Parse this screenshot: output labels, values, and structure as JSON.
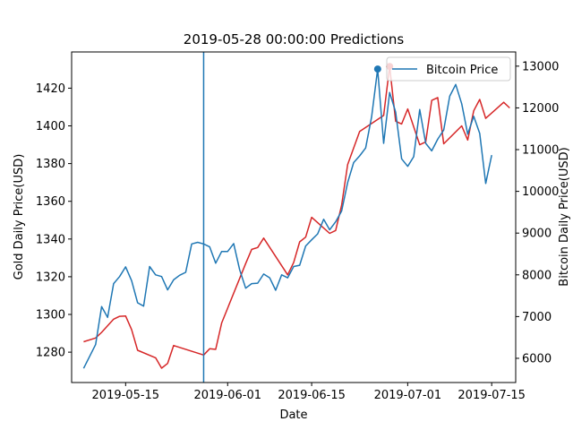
{
  "chart_data": {
    "type": "line",
    "title": "2019-05-28 00:00:00 Predictions",
    "xlabel": "Date",
    "ylabel_left": "Gold Daily Price(USD)",
    "ylabel_right": "Bitcoin Daily Price(USD)",
    "x_ticks": [
      "2019-05-15",
      "2019-06-01",
      "2019-06-15",
      "2019-07-01",
      "2019-07-15"
    ],
    "x_tick_dates": [
      "2019-05-15",
      "2019-06-01",
      "2019-06-15",
      "2019-07-01",
      "2019-07-15"
    ],
    "xlim": [
      "2019-05-06",
      "2019-07-19"
    ],
    "y_left_ticks": [
      1280,
      1300,
      1320,
      1340,
      1360,
      1380,
      1400,
      1420
    ],
    "y_left_lim": [
      1263.9,
      1439.2
    ],
    "y_right_ticks": [
      6000,
      7000,
      8000,
      9000,
      10000,
      11000,
      12000,
      13000
    ],
    "y_right_lim": [
      5420,
      13340
    ],
    "vertical_marker_date": "2019-05-28",
    "legend": {
      "label": "Bitcoin Price",
      "placement": "top-right"
    },
    "colors": {
      "gold": "#d62728",
      "bitcoin": "#1f77b4"
    },
    "series": [
      {
        "name": "Gold Price",
        "axis": "left",
        "color": "#d62728",
        "points": [
          [
            "2019-05-08",
            1285.5
          ],
          [
            "2019-05-10",
            1287.5
          ],
          [
            "2019-05-11",
            1290.5
          ],
          [
            "2019-05-13",
            1297.5
          ],
          [
            "2019-05-14",
            1299.0
          ],
          [
            "2019-05-15",
            1299.2
          ],
          [
            "2019-05-16",
            1292.0
          ],
          [
            "2019-05-17",
            1281.0
          ],
          [
            "2019-05-20",
            1277.0
          ],
          [
            "2019-05-21",
            1271.5
          ],
          [
            "2019-05-22",
            1274.0
          ],
          [
            "2019-05-23",
            1283.5
          ],
          [
            "2019-05-28",
            1278.5
          ],
          [
            "2019-05-29",
            1281.8
          ],
          [
            "2019-05-30",
            1281.5
          ],
          [
            "2019-05-31",
            1295.5
          ],
          [
            "2019-06-04",
            1327.0
          ],
          [
            "2019-06-05",
            1334.5
          ],
          [
            "2019-06-06",
            1335.5
          ],
          [
            "2019-06-07",
            1340.5
          ],
          [
            "2019-06-11",
            1321.0
          ],
          [
            "2019-06-12",
            1327.5
          ],
          [
            "2019-06-13",
            1338.5
          ],
          [
            "2019-06-14",
            1341.0
          ],
          [
            "2019-06-15",
            1351.5
          ],
          [
            "2019-06-18",
            1343.0
          ],
          [
            "2019-06-19",
            1344.5
          ],
          [
            "2019-06-20",
            1358.0
          ],
          [
            "2019-06-21",
            1379.5
          ],
          [
            "2019-06-23",
            1397.0
          ],
          [
            "2019-06-27",
            1405.5
          ],
          [
            "2019-06-28",
            1431.5
          ],
          [
            "2019-06-29",
            1402.5
          ],
          [
            "2019-06-30",
            1401.0
          ],
          [
            "2019-07-01",
            1409.0
          ],
          [
            "2019-07-03",
            1390.0
          ],
          [
            "2019-07-04",
            1391.5
          ],
          [
            "2019-07-05",
            1413.5
          ],
          [
            "2019-07-06",
            1415.0
          ],
          [
            "2019-07-07",
            1390.5
          ],
          [
            "2019-07-10",
            1400.0
          ],
          [
            "2019-07-11",
            1392.5
          ],
          [
            "2019-07-12",
            1408.0
          ],
          [
            "2019-07-13",
            1414.0
          ],
          [
            "2019-07-14",
            1404.0
          ],
          [
            "2019-07-17",
            1412.5
          ],
          [
            "2019-07-18",
            1409.5
          ]
        ]
      },
      {
        "name": "Bitcoin Price",
        "axis": "right",
        "color": "#1f77b4",
        "points": [
          [
            "2019-05-08",
            5760
          ],
          [
            "2019-05-10",
            6330
          ],
          [
            "2019-05-11",
            7240
          ],
          [
            "2019-05-12",
            6980
          ],
          [
            "2019-05-13",
            7790
          ],
          [
            "2019-05-14",
            7960
          ],
          [
            "2019-05-15",
            8190
          ],
          [
            "2019-05-16",
            7860
          ],
          [
            "2019-05-17",
            7330
          ],
          [
            "2019-05-18",
            7250
          ],
          [
            "2019-05-19",
            8200
          ],
          [
            "2019-05-20",
            8000
          ],
          [
            "2019-05-21",
            7960
          ],
          [
            "2019-05-22",
            7640
          ],
          [
            "2019-05-23",
            7880
          ],
          [
            "2019-05-24",
            7990
          ],
          [
            "2019-05-25",
            8060
          ],
          [
            "2019-05-26",
            8740
          ],
          [
            "2019-05-27",
            8780
          ],
          [
            "2019-05-28",
            8740
          ],
          [
            "2019-05-29",
            8670
          ],
          [
            "2019-05-30",
            8280
          ],
          [
            "2019-05-31",
            8560
          ],
          [
            "2019-06-01",
            8560
          ],
          [
            "2019-06-02",
            8750
          ],
          [
            "2019-06-03",
            8120
          ],
          [
            "2019-06-04",
            7680
          ],
          [
            "2019-06-05",
            7790
          ],
          [
            "2019-06-06",
            7800
          ],
          [
            "2019-06-07",
            8020
          ],
          [
            "2019-06-08",
            7930
          ],
          [
            "2019-06-09",
            7630
          ],
          [
            "2019-06-10",
            8000
          ],
          [
            "2019-06-11",
            7930
          ],
          [
            "2019-06-12",
            8200
          ],
          [
            "2019-06-13",
            8230
          ],
          [
            "2019-06-14",
            8690
          ],
          [
            "2019-06-15",
            8840
          ],
          [
            "2019-06-16",
            8980
          ],
          [
            "2019-06-17",
            9330
          ],
          [
            "2019-06-18",
            9080
          ],
          [
            "2019-06-19",
            9270
          ],
          [
            "2019-06-20",
            9530
          ],
          [
            "2019-06-21",
            10210
          ],
          [
            "2019-06-22",
            10690
          ],
          [
            "2019-06-23",
            10850
          ],
          [
            "2019-06-24",
            11040
          ],
          [
            "2019-06-25",
            11790
          ],
          [
            "2019-06-26",
            12930
          ],
          [
            "2019-06-27",
            11150
          ],
          [
            "2019-06-28",
            12370
          ],
          [
            "2019-06-29",
            11900
          ],
          [
            "2019-06-30",
            10780
          ],
          [
            "2019-07-01",
            10600
          ],
          [
            "2019-07-02",
            10830
          ],
          [
            "2019-07-03",
            11960
          ],
          [
            "2019-07-04",
            11150
          ],
          [
            "2019-07-05",
            10970
          ],
          [
            "2019-07-06",
            11250
          ],
          [
            "2019-07-07",
            11470
          ],
          [
            "2019-07-08",
            12280
          ],
          [
            "2019-07-09",
            12560
          ],
          [
            "2019-07-10",
            12100
          ],
          [
            "2019-07-11",
            11370
          ],
          [
            "2019-07-12",
            11800
          ],
          [
            "2019-07-13",
            11390
          ],
          [
            "2019-07-14",
            10190
          ],
          [
            "2019-07-15",
            10870
          ]
        ]
      }
    ],
    "markers": [
      {
        "series": "Gold Price",
        "date": "2019-06-28",
        "value": 1431.5,
        "axis": "left",
        "color": "#d62728"
      },
      {
        "series": "Bitcoin Price",
        "date": "2019-06-26",
        "value": 12930,
        "axis": "right",
        "color": "#1f77b4"
      }
    ]
  }
}
